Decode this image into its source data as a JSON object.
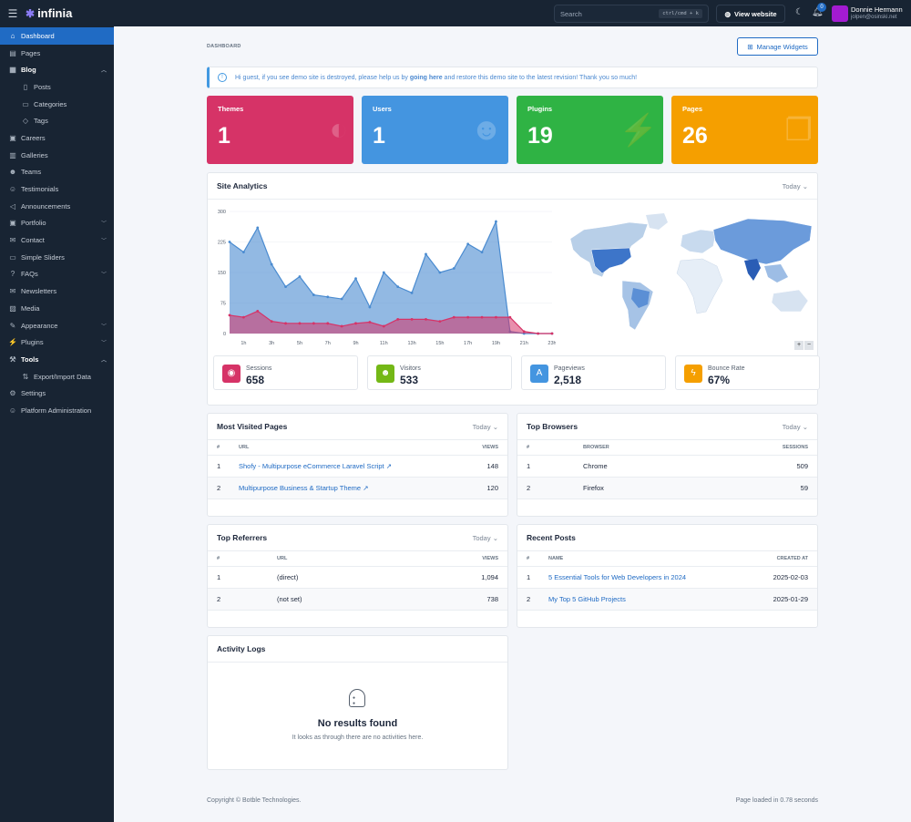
{
  "topbar": {
    "brand": "infinia",
    "search_placeholder": "Search",
    "search_shortcut": "ctrl/cmd + k",
    "view_website": "View website",
    "notification_count": "0",
    "user_name": "Donnie Hermann",
    "user_email": "jolpen@osinski.net"
  },
  "sidebar": {
    "items": [
      {
        "label": "Dashboard",
        "icon": "home-icon",
        "active": true
      },
      {
        "label": "Pages",
        "icon": "page-icon"
      },
      {
        "label": "Blog",
        "icon": "blog-icon",
        "bold": true,
        "chevron": "up"
      },
      {
        "label": "Posts",
        "icon": "file-icon",
        "sub": true
      },
      {
        "label": "Categories",
        "icon": "folder-icon",
        "sub": true
      },
      {
        "label": "Tags",
        "icon": "tag-icon",
        "sub": true
      },
      {
        "label": "Careers",
        "icon": "briefcase-icon"
      },
      {
        "label": "Galleries",
        "icon": "gallery-icon"
      },
      {
        "label": "Teams",
        "icon": "users-icon"
      },
      {
        "label": "Testimonials",
        "icon": "user-check-icon"
      },
      {
        "label": "Announcements",
        "icon": "speakerphone-icon"
      },
      {
        "label": "Portfolio",
        "icon": "briefcase-icon",
        "chevron": "down"
      },
      {
        "label": "Contact",
        "icon": "mail-icon",
        "chevron": "down"
      },
      {
        "label": "Simple Sliders",
        "icon": "slider-icon"
      },
      {
        "label": "FAQs",
        "icon": "help-icon",
        "chevron": "down"
      },
      {
        "label": "Newsletters",
        "icon": "mail-icon"
      },
      {
        "label": "Media",
        "icon": "photo-icon"
      },
      {
        "label": "Appearance",
        "icon": "brush-icon",
        "chevron": "down"
      },
      {
        "label": "Plugins",
        "icon": "plug-icon",
        "chevron": "down"
      },
      {
        "label": "Tools",
        "icon": "tool-icon",
        "bold": true,
        "chevron": "up"
      },
      {
        "label": "Export/Import Data",
        "icon": "export-icon",
        "sub": true
      },
      {
        "label": "Settings",
        "icon": "gear-icon"
      },
      {
        "label": "Platform Administration",
        "icon": "user-shield-icon"
      }
    ]
  },
  "main": {
    "breadcrumb": "DASHBOARD",
    "manage_widgets": "Manage Widgets",
    "alert": {
      "before": "Hi guest, if you see demo site is destroyed, please help us by ",
      "link": "going here",
      "after": " and restore this demo site to the latest revision! Thank you so much!"
    },
    "stats": [
      {
        "label": "Themes",
        "value": "1",
        "color": "#d63367",
        "icon": "palette-icon"
      },
      {
        "label": "Users",
        "value": "1",
        "color": "#4495e0",
        "icon": "users-icon"
      },
      {
        "label": "Plugins",
        "value": "19",
        "color": "#2fb344",
        "icon": "plug-icon"
      },
      {
        "label": "Pages",
        "value": "26",
        "color": "#f59f00",
        "icon": "pages-icon"
      }
    ],
    "analytics": {
      "title": "Site Analytics",
      "filter": "Today",
      "metrics": [
        {
          "label": "Sessions",
          "value": "658",
          "color": "#d63367",
          "icon": "eye-icon"
        },
        {
          "label": "Visitors",
          "value": "533",
          "color": "#74b816",
          "icon": "users-icon"
        },
        {
          "label": "Pageviews",
          "value": "2,518",
          "color": "#4495e0",
          "icon": "text-icon"
        },
        {
          "label": "Bounce Rate",
          "value": "67%",
          "color": "#f59f00",
          "icon": "bolt-icon"
        }
      ]
    },
    "most_visited": {
      "title": "Most Visited Pages",
      "filter": "Today",
      "headers": [
        "#",
        "URL",
        "VIEWS"
      ],
      "rows": [
        {
          "n": "1",
          "url": "Shofy - Multipurpose eCommerce Laravel Script",
          "views": "148"
        },
        {
          "n": "2",
          "url": "Multipurpose Business & Startup Theme",
          "views": "120"
        }
      ]
    },
    "top_browsers": {
      "title": "Top Browsers",
      "filter": "Today",
      "headers": [
        "#",
        "BROWSER",
        "SESSIONS"
      ],
      "rows": [
        {
          "n": "1",
          "name": "Chrome",
          "sessions": "509"
        },
        {
          "n": "2",
          "name": "Firefox",
          "sessions": "59"
        }
      ]
    },
    "top_referrers": {
      "title": "Top Referrers",
      "filter": "Today",
      "headers": [
        "#",
        "URL",
        "VIEWS"
      ],
      "rows": [
        {
          "n": "1",
          "url": "(direct)",
          "views": "1,094"
        },
        {
          "n": "2",
          "url": "(not set)",
          "views": "738"
        }
      ]
    },
    "recent_posts": {
      "title": "Recent Posts",
      "headers": [
        "#",
        "NAME",
        "CREATED AT"
      ],
      "rows": [
        {
          "n": "1",
          "name": "5 Essential Tools for Web Developers in 2024",
          "date": "2025-02-03"
        },
        {
          "n": "2",
          "name": "My Top 5 GitHub Projects",
          "date": "2025-01-29"
        }
      ]
    },
    "activity": {
      "title": "Activity Logs",
      "empty_title": "No results found",
      "empty_text": "It looks as through there are no activities here."
    },
    "footer": {
      "copyright": "Copyright © Botble Technologies.",
      "loaded": "Page loaded in 0.78 seconds"
    }
  },
  "chart_data": {
    "type": "area",
    "x": [
      "0h",
      "1h",
      "2h",
      "3h",
      "4h",
      "5h",
      "6h",
      "7h",
      "8h",
      "9h",
      "10h",
      "11h",
      "12h",
      "13h",
      "14h",
      "15h",
      "16h",
      "17h",
      "18h",
      "19h",
      "20h",
      "21h",
      "22h",
      "23h"
    ],
    "xticks": [
      "1h",
      "3h",
      "5h",
      "7h",
      "9h",
      "11h",
      "13h",
      "15h",
      "17h",
      "19h",
      "21h",
      "23h"
    ],
    "yticks": [
      "0",
      "75",
      "150",
      "225",
      "300"
    ],
    "ylim": [
      0,
      300
    ],
    "series": [
      {
        "color": "#4a8bd0",
        "values": [
          225,
          200,
          260,
          170,
          115,
          140,
          95,
          90,
          85,
          135,
          65,
          150,
          115,
          100,
          195,
          150,
          160,
          220,
          200,
          275,
          5,
          0,
          0,
          0
        ]
      },
      {
        "color": "#d63367",
        "values": [
          45,
          40,
          55,
          30,
          25,
          25,
          25,
          25,
          18,
          25,
          28,
          18,
          35,
          35,
          35,
          30,
          40,
          40,
          40,
          40,
          40,
          5,
          0,
          0
        ]
      }
    ],
    "map_controls": [
      "+",
      "−"
    ]
  }
}
